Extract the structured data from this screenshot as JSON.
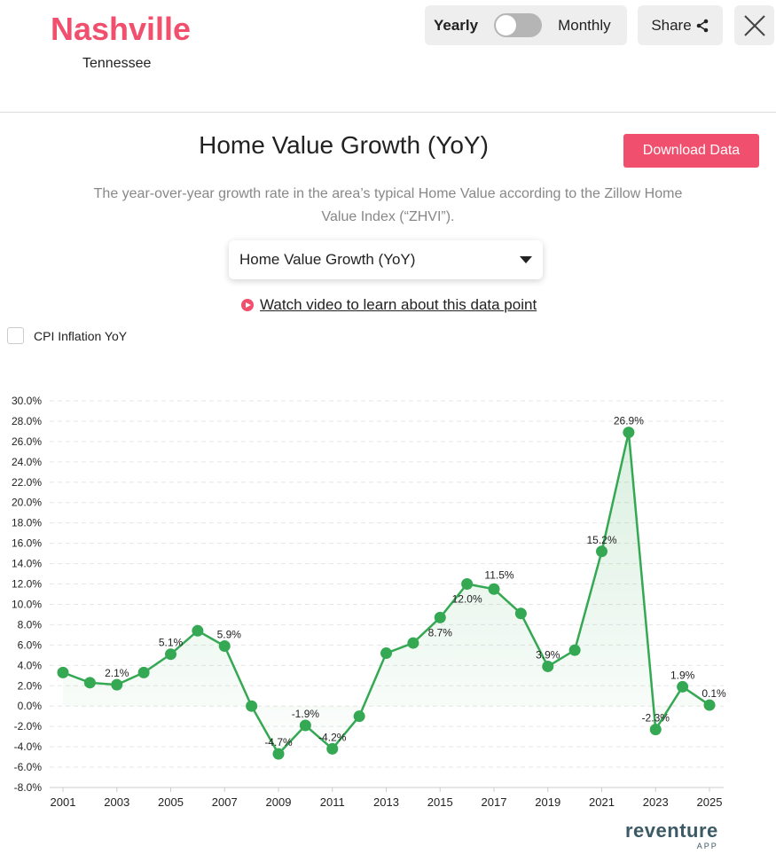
{
  "header": {
    "city": "Nashville",
    "state": "Tennessee",
    "toggle_left": "Yearly",
    "toggle_right": "Monthly",
    "toggle_state": "yearly",
    "share": "Share",
    "close_icon": "close-icon",
    "share_icon": "share-icon"
  },
  "main": {
    "title": "Home Value Growth (YoY)",
    "download": "Download Data",
    "description": "The year-over-year growth rate in the area’s typical Home Value according to the Zillow Home Value Index (“ZHVI”).",
    "select_value": "Home Value Growth (YoY)",
    "video_link": "Watch video to learn about this data point",
    "cpi_label": "CPI Inflation YoY",
    "cpi_checked": false,
    "accent": "#f0506e"
  },
  "logo": {
    "name": "reventure",
    "sub": "APP"
  },
  "chart_data": {
    "type": "line",
    "x": [
      2001,
      2002,
      2003,
      2004,
      2005,
      2006,
      2007,
      2008,
      2009,
      2010,
      2011,
      2012,
      2013,
      2014,
      2015,
      2016,
      2017,
      2018,
      2019,
      2020,
      2021,
      2022,
      2023,
      2024,
      2025
    ],
    "series": [
      {
        "values": [
          3.3,
          2.3,
          2.1,
          3.3,
          5.1,
          7.4,
          5.9,
          0.0,
          -4.7,
          -1.9,
          -4.2,
          -1.0,
          5.2,
          6.2,
          8.7,
          12.0,
          11.5,
          9.1,
          3.9,
          5.5,
          15.2,
          26.9,
          -2.3,
          1.9,
          0.1
        ],
        "color": "#34a853"
      }
    ],
    "data_labels": {
      "2003": "2.1%",
      "2005": "5.1%",
      "2007": "5.9%",
      "2009": "-4.7%",
      "2010": "-1.9%",
      "2011": "-4.2%",
      "2015": "8.7%",
      "2016": "12.0%",
      "2017": "11.5%",
      "2019": "3.9%",
      "2021": "15.2%",
      "2022": "26.9%",
      "2023": "-2.3%",
      "2024": "1.9%",
      "2025": "0.1%"
    },
    "ylim": [
      -8,
      30
    ],
    "ytick_step": 2,
    "yticks": [
      "30.0%",
      "28.0%",
      "26.0%",
      "24.0%",
      "22.0%",
      "20.0%",
      "18.0%",
      "16.0%",
      "14.0%",
      "12.0%",
      "10.0%",
      "8.0%",
      "6.0%",
      "4.0%",
      "2.0%",
      "0.0%",
      "-2.0%",
      "-4.0%",
      "-6.0%",
      "-8.0%"
    ],
    "xticks": [
      "2001",
      "2003",
      "2005",
      "2007",
      "2009",
      "2011",
      "2013",
      "2015",
      "2017",
      "2019",
      "2021",
      "2023",
      "2025"
    ],
    "grid": true,
    "area_fill": true
  }
}
